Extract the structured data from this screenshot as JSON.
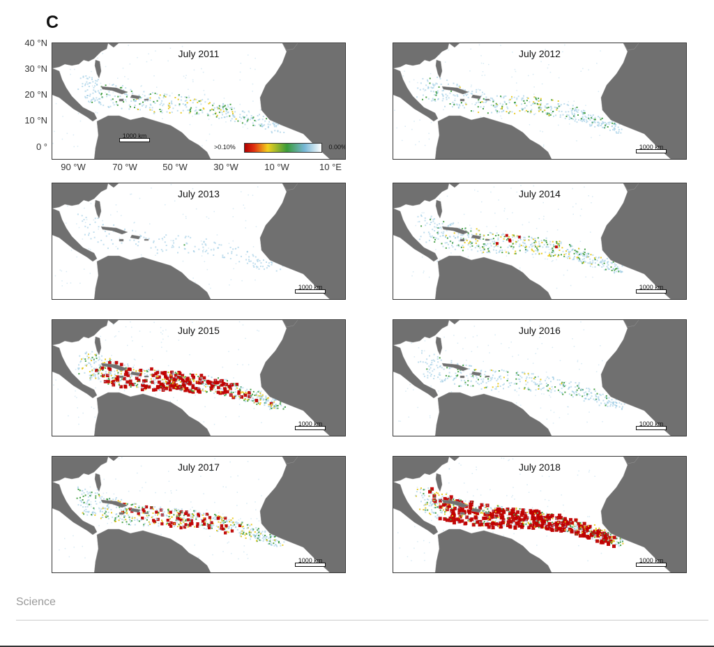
{
  "panel_letter": "C",
  "lat_labels": [
    "40 °N",
    "30 °N",
    "20 °N",
    "10 °N",
    "0 °"
  ],
  "lon_labels": [
    "90 °W",
    "70 °W",
    "50 °W",
    "30 °W",
    "10 °W",
    "10 °E"
  ],
  "legend": {
    "high_label": ">0.10%",
    "low_label": "0.00%"
  },
  "scale_label": "1000 km",
  "source": "Science",
  "colors": {
    "land": "#707070",
    "ocean": "#ffffff",
    "high": "#c00000",
    "mid_high": "#e8c81a",
    "mid": "#3c9b3c",
    "low": "#8cc3e0"
  },
  "maps": [
    {
      "title": "July 2011",
      "intensity": 0.35
    },
    {
      "title": "July 2012",
      "intensity": 0.4
    },
    {
      "title": "July 2013",
      "intensity": 0.08
    },
    {
      "title": "July 2014",
      "intensity": 0.5
    },
    {
      "title": "July 2015",
      "intensity": 0.85
    },
    {
      "title": "July 2016",
      "intensity": 0.35
    },
    {
      "title": "July 2017",
      "intensity": 0.65
    },
    {
      "title": "July 2018",
      "intensity": 1.0
    }
  ]
}
